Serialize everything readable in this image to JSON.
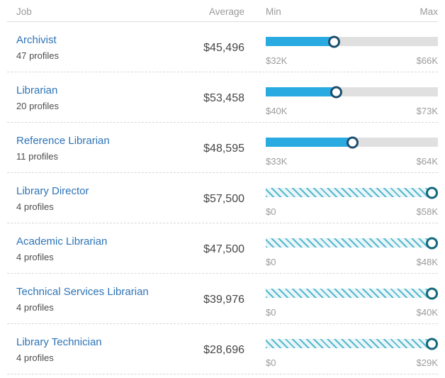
{
  "header": {
    "job": "Job",
    "average": "Average",
    "min": "Min",
    "max": "Max"
  },
  "colors": {
    "link_blue": "#2e74b6",
    "bar_blue": "#29abe2",
    "bar_track_gray": "#e0e0e0",
    "marker_navy": "#1d4e6e",
    "hatch_teal": "#56b8cd",
    "hatch_background": "#edf7fa",
    "marker_teal": "#13687b",
    "header_gray": "#9b9b9b"
  },
  "chart_data": {
    "type": "table",
    "columns": [
      "Job",
      "Average",
      "Min",
      "Max"
    ],
    "rows": [
      {
        "job": "Archivist",
        "profiles": "47 profiles",
        "average": "$45,496",
        "average_value": 45496,
        "min_label": "$32K",
        "min_value": 32000,
        "max_label": "$66K",
        "max_value": 66000,
        "bar_style": "solid",
        "marker_percent": 39.7
      },
      {
        "job": "Librarian",
        "profiles": "20 profiles",
        "average": "$53,458",
        "average_value": 53458,
        "min_label": "$40K",
        "min_value": 40000,
        "max_label": "$73K",
        "max_value": 73000,
        "bar_style": "solid",
        "marker_percent": 40.8
      },
      {
        "job": "Reference Librarian",
        "profiles": "11 profiles",
        "average": "$48,595",
        "average_value": 48595,
        "min_label": "$33K",
        "min_value": 33000,
        "max_label": "$64K",
        "max_value": 64000,
        "bar_style": "solid",
        "marker_percent": 50.3
      },
      {
        "job": "Library Director",
        "profiles": "4 profiles",
        "average": "$57,500",
        "average_value": 57500,
        "min_label": "$0",
        "min_value": 0,
        "max_label": "$58K",
        "max_value": 58000,
        "bar_style": "hatched",
        "marker_percent": 99.1
      },
      {
        "job": "Academic Librarian",
        "profiles": "4 profiles",
        "average": "$47,500",
        "average_value": 47500,
        "min_label": "$0",
        "min_value": 0,
        "max_label": "$48K",
        "max_value": 48000,
        "bar_style": "hatched",
        "marker_percent": 99.0
      },
      {
        "job": "Technical Services Librarian",
        "profiles": "4 profiles",
        "average": "$39,976",
        "average_value": 39976,
        "min_label": "$0",
        "min_value": 0,
        "max_label": "$40K",
        "max_value": 40000,
        "bar_style": "hatched",
        "marker_percent": 99.9
      },
      {
        "job": "Library Technician",
        "profiles": "4 profiles",
        "average": "$28,696",
        "average_value": 28696,
        "min_label": "$0",
        "min_value": 0,
        "max_label": "$29K",
        "max_value": 29000,
        "bar_style": "hatched",
        "marker_percent": 99.0
      }
    ]
  }
}
